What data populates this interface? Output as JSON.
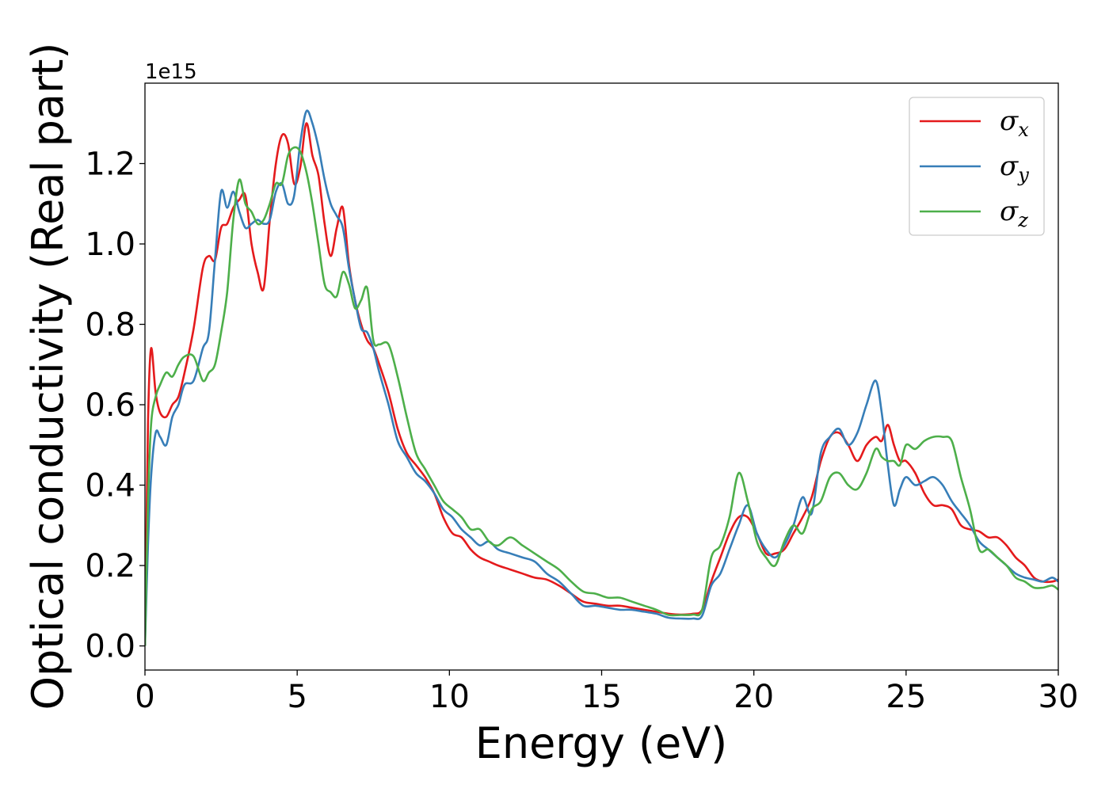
{
  "chart_data": {
    "type": "line",
    "xlabel": "Energy (eV)",
    "ylabel": "Optical conductivity (Real part)",
    "offset_text": "1e15",
    "xlim": [
      0,
      30
    ],
    "ylim": [
      -0.06,
      1.4
    ],
    "xticks": [
      0,
      5,
      10,
      15,
      20,
      25,
      30
    ],
    "xtick_labels": [
      "0",
      "5",
      "10",
      "15",
      "20",
      "25",
      "30"
    ],
    "yticks": [
      0.0,
      0.2,
      0.4,
      0.6,
      0.8,
      1.0,
      1.2
    ],
    "ytick_labels": [
      "0.0",
      "0.2",
      "0.4",
      "0.6",
      "0.8",
      "1.0",
      "1.2"
    ],
    "grid": false,
    "legend_position": "top-right",
    "series": [
      {
        "name": "σx",
        "symbol": "σ",
        "subscript": "x",
        "color": "#e41a1c",
        "x": [
          0,
          0.1,
          0.2,
          0.35,
          0.5,
          0.7,
          0.9,
          1.1,
          1.3,
          1.6,
          1.9,
          2.1,
          2.3,
          2.5,
          2.7,
          2.9,
          3.1,
          3.3,
          3.5,
          3.7,
          3.9,
          4.1,
          4.3,
          4.5,
          4.7,
          4.9,
          5.1,
          5.3,
          5.5,
          5.7,
          5.9,
          6.1,
          6.3,
          6.5,
          6.7,
          6.9,
          7.1,
          7.3,
          7.5,
          7.7,
          8.0,
          8.3,
          8.6,
          8.9,
          9.2,
          9.5,
          9.8,
          10.1,
          10.4,
          10.7,
          11.0,
          11.3,
          11.6,
          12.0,
          12.4,
          12.8,
          13.2,
          13.6,
          14.0,
          14.4,
          14.8,
          15.2,
          15.6,
          16.0,
          16.4,
          16.8,
          17.2,
          17.6,
          18.0,
          18.3,
          18.6,
          18.9,
          19.2,
          19.5,
          19.8,
          20.1,
          20.4,
          20.7,
          21.0,
          21.3,
          21.6,
          21.9,
          22.2,
          22.5,
          22.8,
          23.1,
          23.4,
          23.7,
          24.0,
          24.2,
          24.4,
          24.6,
          24.8,
          25.0,
          25.3,
          25.6,
          25.9,
          26.2,
          26.5,
          26.8,
          27.1,
          27.4,
          27.7,
          28.0,
          28.3,
          28.6,
          28.9,
          29.2,
          29.5,
          29.8,
          30.0
        ],
        "y": [
          0.0,
          0.55,
          0.74,
          0.63,
          0.58,
          0.57,
          0.6,
          0.62,
          0.68,
          0.79,
          0.94,
          0.97,
          0.96,
          1.04,
          1.05,
          1.09,
          1.11,
          1.12,
          1.0,
          0.93,
          0.89,
          1.06,
          1.2,
          1.27,
          1.25,
          1.15,
          1.19,
          1.3,
          1.22,
          1.17,
          1.05,
          0.97,
          1.04,
          1.09,
          0.95,
          0.86,
          0.8,
          0.76,
          0.74,
          0.7,
          0.63,
          0.54,
          0.48,
          0.45,
          0.42,
          0.38,
          0.32,
          0.28,
          0.27,
          0.24,
          0.22,
          0.21,
          0.2,
          0.19,
          0.18,
          0.17,
          0.165,
          0.15,
          0.13,
          0.11,
          0.105,
          0.1,
          0.1,
          0.095,
          0.09,
          0.085,
          0.08,
          0.078,
          0.08,
          0.09,
          0.16,
          0.22,
          0.28,
          0.32,
          0.32,
          0.28,
          0.23,
          0.23,
          0.24,
          0.28,
          0.32,
          0.37,
          0.46,
          0.52,
          0.53,
          0.5,
          0.46,
          0.5,
          0.52,
          0.51,
          0.55,
          0.5,
          0.46,
          0.46,
          0.43,
          0.38,
          0.35,
          0.35,
          0.34,
          0.3,
          0.29,
          0.285,
          0.27,
          0.27,
          0.25,
          0.22,
          0.2,
          0.17,
          0.16,
          0.16,
          0.165
        ]
      },
      {
        "name": "σy",
        "symbol": "σ",
        "subscript": "y",
        "color": "#377eb8",
        "x": [
          0,
          0.1,
          0.2,
          0.35,
          0.5,
          0.7,
          0.9,
          1.1,
          1.3,
          1.6,
          1.9,
          2.1,
          2.3,
          2.5,
          2.7,
          2.9,
          3.1,
          3.3,
          3.5,
          3.7,
          3.9,
          4.1,
          4.3,
          4.5,
          4.7,
          4.9,
          5.1,
          5.3,
          5.5,
          5.7,
          5.9,
          6.1,
          6.3,
          6.5,
          6.7,
          6.9,
          7.1,
          7.3,
          7.5,
          7.7,
          8.0,
          8.3,
          8.6,
          8.9,
          9.2,
          9.5,
          9.8,
          10.1,
          10.4,
          10.7,
          11.0,
          11.3,
          11.6,
          12.0,
          12.4,
          12.8,
          13.2,
          13.6,
          14.0,
          14.4,
          14.8,
          15.2,
          15.6,
          16.0,
          16.4,
          16.8,
          17.2,
          17.6,
          18.0,
          18.3,
          18.6,
          18.9,
          19.2,
          19.5,
          19.8,
          20.1,
          20.4,
          20.7,
          21.0,
          21.3,
          21.6,
          21.9,
          22.2,
          22.5,
          22.8,
          23.1,
          23.4,
          23.7,
          24.0,
          24.2,
          24.4,
          24.6,
          24.8,
          25.0,
          25.3,
          25.6,
          25.9,
          26.2,
          26.5,
          26.8,
          27.1,
          27.4,
          27.7,
          28.0,
          28.3,
          28.6,
          28.9,
          29.2,
          29.5,
          29.8,
          30.0
        ],
        "y": [
          0.0,
          0.25,
          0.42,
          0.53,
          0.52,
          0.5,
          0.57,
          0.6,
          0.65,
          0.66,
          0.74,
          0.78,
          0.96,
          1.13,
          1.09,
          1.13,
          1.08,
          1.04,
          1.05,
          1.06,
          1.05,
          1.06,
          1.13,
          1.15,
          1.1,
          1.12,
          1.25,
          1.33,
          1.3,
          1.24,
          1.16,
          1.1,
          1.07,
          1.04,
          0.94,
          0.86,
          0.79,
          0.78,
          0.74,
          0.68,
          0.6,
          0.51,
          0.47,
          0.43,
          0.41,
          0.38,
          0.34,
          0.32,
          0.29,
          0.27,
          0.25,
          0.26,
          0.24,
          0.23,
          0.22,
          0.21,
          0.18,
          0.16,
          0.13,
          0.1,
          0.1,
          0.095,
          0.09,
          0.09,
          0.085,
          0.08,
          0.07,
          0.068,
          0.068,
          0.075,
          0.15,
          0.18,
          0.24,
          0.3,
          0.35,
          0.28,
          0.24,
          0.22,
          0.25,
          0.3,
          0.37,
          0.33,
          0.48,
          0.52,
          0.54,
          0.5,
          0.53,
          0.6,
          0.66,
          0.58,
          0.45,
          0.35,
          0.39,
          0.42,
          0.4,
          0.41,
          0.42,
          0.4,
          0.36,
          0.33,
          0.3,
          0.26,
          0.24,
          0.22,
          0.2,
          0.18,
          0.17,
          0.165,
          0.16,
          0.17,
          0.16
        ]
      },
      {
        "name": "σz",
        "symbol": "σ",
        "subscript": "z",
        "color": "#4daf4a",
        "x": [
          0,
          0.1,
          0.2,
          0.35,
          0.5,
          0.7,
          0.9,
          1.1,
          1.3,
          1.6,
          1.9,
          2.1,
          2.3,
          2.5,
          2.7,
          2.9,
          3.1,
          3.3,
          3.5,
          3.7,
          3.9,
          4.1,
          4.3,
          4.5,
          4.7,
          4.9,
          5.1,
          5.3,
          5.5,
          5.7,
          5.9,
          6.1,
          6.3,
          6.5,
          6.7,
          6.9,
          7.1,
          7.3,
          7.5,
          7.7,
          8.0,
          8.3,
          8.6,
          8.9,
          9.2,
          9.5,
          9.8,
          10.1,
          10.4,
          10.7,
          11.0,
          11.3,
          11.6,
          12.0,
          12.4,
          12.8,
          13.2,
          13.6,
          14.0,
          14.4,
          14.8,
          15.2,
          15.6,
          16.0,
          16.4,
          16.8,
          17.2,
          17.6,
          18.0,
          18.3,
          18.6,
          18.9,
          19.2,
          19.5,
          19.8,
          20.1,
          20.4,
          20.7,
          21.0,
          21.3,
          21.6,
          21.9,
          22.2,
          22.5,
          22.8,
          23.1,
          23.4,
          23.7,
          24.0,
          24.2,
          24.4,
          24.6,
          24.8,
          25.0,
          25.3,
          25.6,
          25.9,
          26.2,
          26.5,
          26.8,
          27.1,
          27.4,
          27.7,
          28.0,
          28.3,
          28.6,
          28.9,
          29.2,
          29.5,
          29.8,
          30.0
        ],
        "y": [
          0.0,
          0.35,
          0.55,
          0.62,
          0.65,
          0.68,
          0.67,
          0.7,
          0.72,
          0.72,
          0.66,
          0.68,
          0.7,
          0.78,
          0.88,
          1.06,
          1.16,
          1.1,
          1.08,
          1.05,
          1.06,
          1.1,
          1.15,
          1.15,
          1.22,
          1.24,
          1.23,
          1.18,
          1.1,
          1.0,
          0.9,
          0.88,
          0.87,
          0.93,
          0.9,
          0.84,
          0.86,
          0.89,
          0.76,
          0.75,
          0.75,
          0.67,
          0.57,
          0.48,
          0.44,
          0.4,
          0.36,
          0.34,
          0.32,
          0.29,
          0.29,
          0.26,
          0.25,
          0.27,
          0.25,
          0.23,
          0.21,
          0.19,
          0.16,
          0.135,
          0.13,
          0.12,
          0.12,
          0.11,
          0.1,
          0.09,
          0.077,
          0.077,
          0.078,
          0.09,
          0.22,
          0.25,
          0.32,
          0.43,
          0.36,
          0.26,
          0.22,
          0.2,
          0.26,
          0.3,
          0.28,
          0.34,
          0.36,
          0.42,
          0.43,
          0.4,
          0.39,
          0.43,
          0.49,
          0.47,
          0.46,
          0.46,
          0.45,
          0.5,
          0.49,
          0.51,
          0.52,
          0.52,
          0.51,
          0.42,
          0.34,
          0.24,
          0.24,
          0.22,
          0.2,
          0.17,
          0.16,
          0.145,
          0.145,
          0.15,
          0.14
        ]
      }
    ]
  }
}
